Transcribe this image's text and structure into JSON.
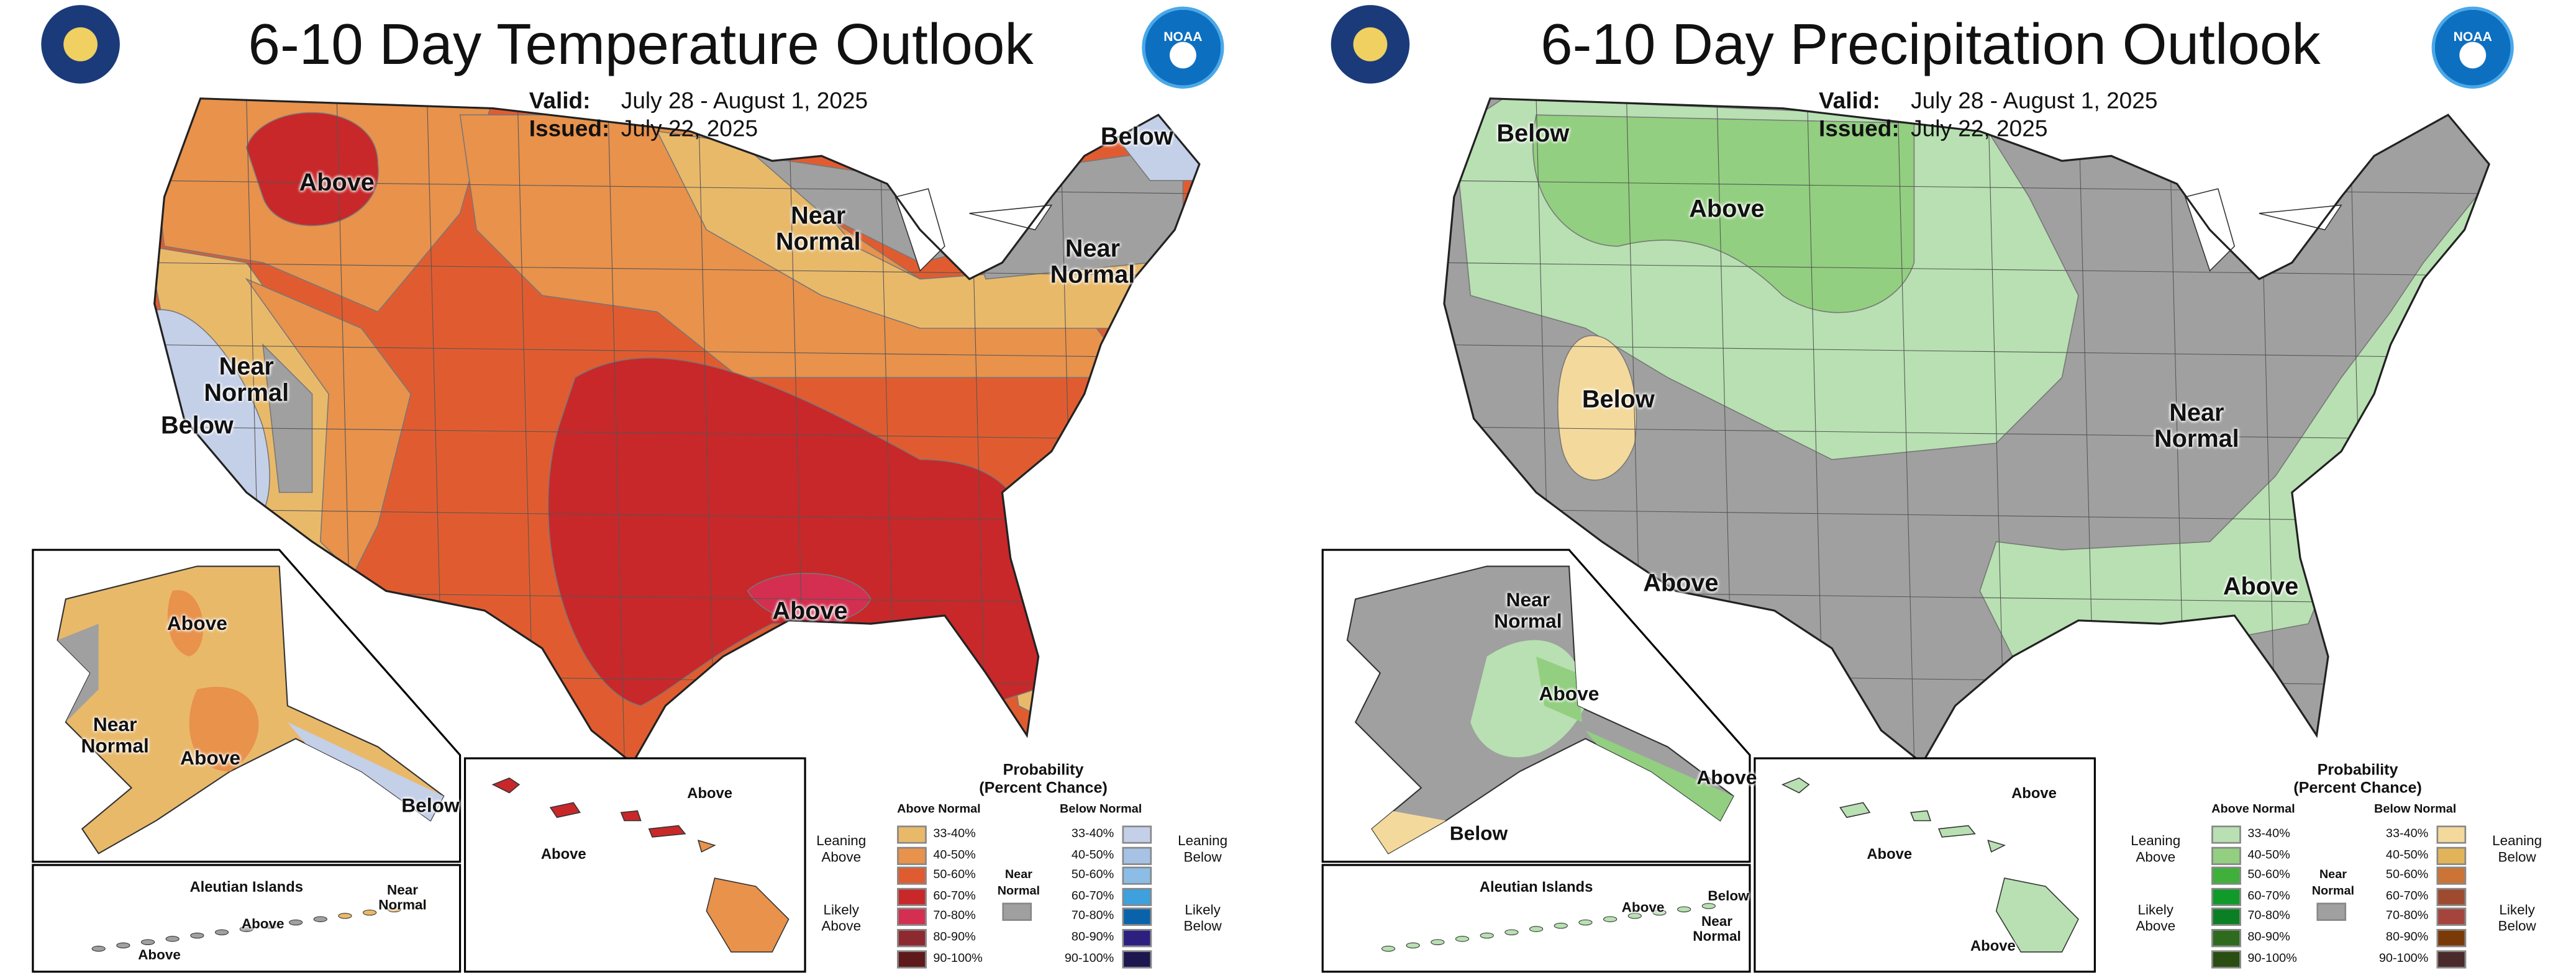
{
  "panels": [
    {
      "id": "temperature",
      "title": "6-10 Day Temperature Outlook",
      "valid_label": "Valid:",
      "valid_value": "July 28 - August 1, 2025",
      "issued_label": "Issued:",
      "issued_value": "July 22, 2025",
      "map_labels": [
        "Above",
        "Near Normal",
        "Below",
        "Near Normal",
        "Near Normal",
        "Below",
        "Above"
      ],
      "alaska_labels": [
        "Above",
        "Near Normal",
        "Above",
        "Below"
      ],
      "hawaii_labels": [
        "Above",
        "Above"
      ],
      "aleutian_title": "Aleutian Islands",
      "aleutian_labels": [
        "Near Normal",
        "Above",
        "Above"
      ],
      "legend": {
        "title": "Probability",
        "subtitle": "(Percent Chance)",
        "above_header": "Above Normal",
        "below_header": "Below Normal",
        "leaning_above": "Leaning Above",
        "likely_above": "Likely Above",
        "leaning_below": "Leaning Below",
        "likely_below": "Likely Below",
        "near_normal": "Near Normal",
        "ranges": [
          "33-40%",
          "40-50%",
          "50-60%",
          "60-70%",
          "70-80%",
          "80-90%",
          "90-100%"
        ],
        "above_colors": [
          "#e9b96a",
          "#e8924c",
          "#e05c30",
          "#c8282a",
          "#d42f50",
          "#8c2a30",
          "#5e1a1a"
        ],
        "below_colors": [
          "#c4cfe8",
          "#a6c2e4",
          "#8bbde6",
          "#3ea0dc",
          "#0a63aa",
          "#2c1f80",
          "#1d174f"
        ],
        "near_color": "#a0a0a0"
      }
    },
    {
      "id": "precipitation",
      "title": "6-10 Day Precipitation Outlook",
      "valid_label": "Valid:",
      "valid_value": "July 28 - August 1, 2025",
      "issued_label": "Issued:",
      "issued_value": "July 22, 2025",
      "map_labels": [
        "Below",
        "Above",
        "Below",
        "Near Normal",
        "Above",
        "Above"
      ],
      "alaska_labels": [
        "Near Normal",
        "Above",
        "Above",
        "Below"
      ],
      "hawaii_labels": [
        "Above",
        "Above",
        "Above"
      ],
      "aleutian_title": "Aleutian Islands",
      "aleutian_labels": [
        "Above",
        "Below",
        "Near Normal"
      ],
      "legend": {
        "title": "Probability",
        "subtitle": "(Percent Chance)",
        "above_header": "Above Normal",
        "below_header": "Below Normal",
        "leaning_above": "Leaning Above",
        "likely_above": "Likely Above",
        "leaning_below": "Leaning Below",
        "likely_below": "Likely Below",
        "near_normal": "Near Normal",
        "ranges": [
          "33-40%",
          "40-50%",
          "50-60%",
          "60-70%",
          "70-80%",
          "80-90%",
          "90-100%"
        ],
        "above_colors": [
          "#b8e0b2",
          "#92cf80",
          "#3fb03a",
          "#0f9a2a",
          "#0b7f24",
          "#2f6b1e",
          "#2a4d12"
        ],
        "below_colors": [
          "#f4d99c",
          "#e2b45a",
          "#cc7436",
          "#9e4a2e",
          "#a4443c",
          "#7a3a08",
          "#4a2a2a"
        ],
        "near_color": "#a0a0a0"
      }
    }
  ],
  "logos": {
    "left": "Department of Commerce seal",
    "right": "NOAA"
  }
}
